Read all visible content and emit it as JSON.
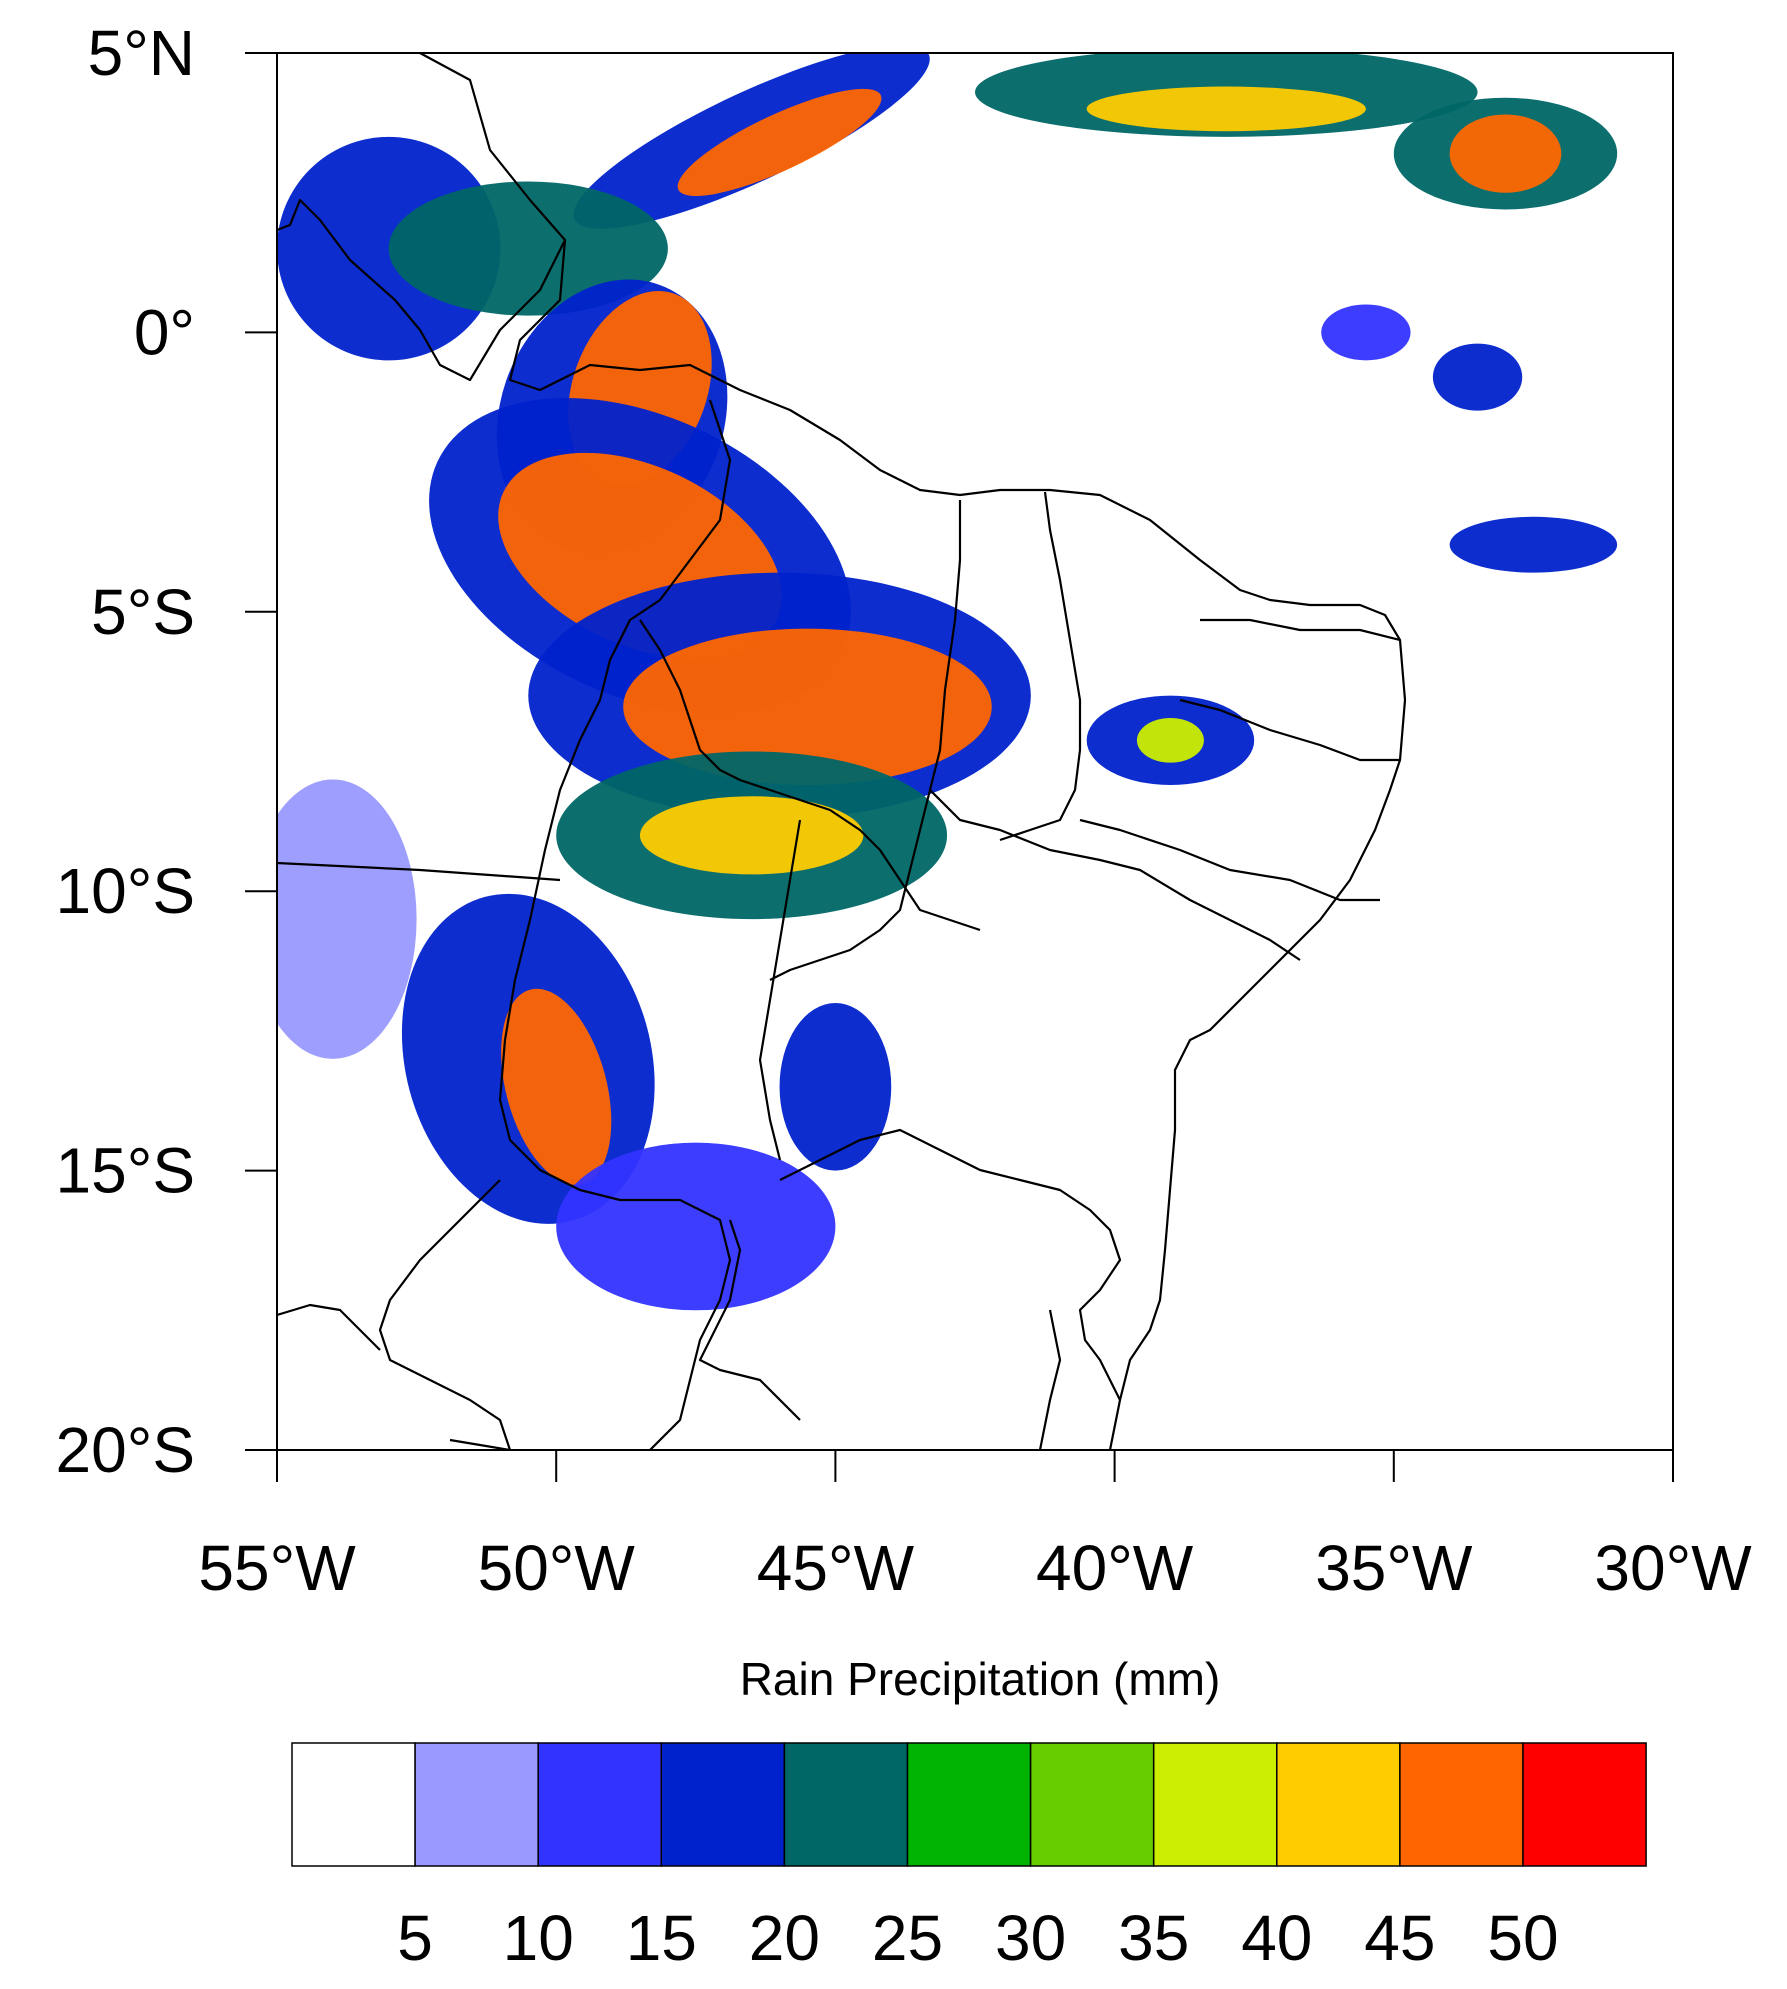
{
  "map": {
    "lon_range": [
      -55,
      -30
    ],
    "lat_range": [
      -20,
      5
    ],
    "lat_ticks": [
      {
        "value": 5,
        "label": "5°N"
      },
      {
        "value": 0,
        "label": "0°"
      },
      {
        "value": -5,
        "label": "5°S"
      },
      {
        "value": -10,
        "label": "10°S"
      },
      {
        "value": -15,
        "label": "15°S"
      },
      {
        "value": -20,
        "label": "20°S"
      }
    ],
    "lon_ticks": [
      {
        "value": -55,
        "label": "55°W"
      },
      {
        "value": -50,
        "label": "50°W"
      },
      {
        "value": -45,
        "label": "45°W"
      },
      {
        "value": -40,
        "label": "40°W"
      },
      {
        "value": -35,
        "label": "35°W"
      },
      {
        "value": -30,
        "label": "30°W"
      }
    ],
    "frame_color": "#000000",
    "coast_color": "#000000"
  },
  "precip_areas": [
    {
      "lon": -46.5,
      "lat": 3.5,
      "rx": 3.5,
      "ry": 0.8,
      "level": 3,
      "rot": -25
    },
    {
      "lon": -46.0,
      "lat": 3.4,
      "rx": 2.0,
      "ry": 0.5,
      "level": 9,
      "rot": -25
    },
    {
      "lon": -38.0,
      "lat": 4.3,
      "rx": 4.5,
      "ry": 0.8,
      "level": 4
    },
    {
      "lon": -38.0,
      "lat": 4.0,
      "rx": 2.5,
      "ry": 0.4,
      "level": 8
    },
    {
      "lon": -33.0,
      "lat": 3.2,
      "rx": 2.0,
      "ry": 1.0,
      "level": 4
    },
    {
      "lon": -33.0,
      "lat": 3.2,
      "rx": 1.0,
      "ry": 0.7,
      "level": 9
    },
    {
      "lon": -53.0,
      "lat": 1.5,
      "rx": 2.0,
      "ry": 2.0,
      "level": 3
    },
    {
      "lon": -50.5,
      "lat": 1.5,
      "rx": 2.5,
      "ry": 1.2,
      "level": 4
    },
    {
      "lon": -49.0,
      "lat": -1.5,
      "rx": 2.0,
      "ry": 2.5,
      "level": 3,
      "rot": 20
    },
    {
      "lon": -48.5,
      "lat": -1.0,
      "rx": 1.2,
      "ry": 1.8,
      "level": 9,
      "rot": 20
    },
    {
      "lon": -48.5,
      "lat": -4.0,
      "rx": 4.0,
      "ry": 2.5,
      "level": 3,
      "rot": 25
    },
    {
      "lon": -48.5,
      "lat": -4.0,
      "rx": 2.7,
      "ry": 1.6,
      "level": 9,
      "rot": 25
    },
    {
      "lon": -46.0,
      "lat": -6.5,
      "rx": 4.5,
      "ry": 2.2,
      "level": 3
    },
    {
      "lon": -45.5,
      "lat": -6.7,
      "rx": 3.3,
      "ry": 1.4,
      "level": 9
    },
    {
      "lon": -46.5,
      "lat": -9.0,
      "rx": 3.5,
      "ry": 1.5,
      "level": 4
    },
    {
      "lon": -46.5,
      "lat": -9.0,
      "rx": 2.0,
      "ry": 0.7,
      "level": 8
    },
    {
      "lon": -50.5,
      "lat": -13.0,
      "rx": 2.2,
      "ry": 3.0,
      "level": 3,
      "rot": -15
    },
    {
      "lon": -50.0,
      "lat": -13.5,
      "rx": 0.9,
      "ry": 1.8,
      "level": 9,
      "rot": -15
    },
    {
      "lon": -39.0,
      "lat": -7.3,
      "rx": 1.5,
      "ry": 0.8,
      "level": 3
    },
    {
      "lon": -39.0,
      "lat": -7.3,
      "rx": 0.6,
      "ry": 0.4,
      "level": 7
    },
    {
      "lon": -35.5,
      "lat": 0.0,
      "rx": 0.8,
      "ry": 0.5,
      "level": 2
    },
    {
      "lon": -33.5,
      "lat": -0.8,
      "rx": 0.8,
      "ry": 0.6,
      "level": 3
    },
    {
      "lon": -32.5,
      "lat": -3.8,
      "rx": 1.5,
      "ry": 0.5,
      "level": 3
    },
    {
      "lon": -47.5,
      "lat": -16.0,
      "rx": 2.5,
      "ry": 1.5,
      "level": 2
    },
    {
      "lon": -45.0,
      "lat": -13.5,
      "rx": 1.0,
      "ry": 1.5,
      "level": 3
    },
    {
      "lon": -54.0,
      "lat": -10.5,
      "rx": 1.5,
      "ry": 2.5,
      "level": 1
    }
  ],
  "colorbar": {
    "title": "Rain Precipitation (mm)",
    "colors": [
      "#ffffff",
      "#9999ff",
      "#3333ff",
      "#0022cc",
      "#006666",
      "#00b300",
      "#66cc00",
      "#ccee00",
      "#ffcc00",
      "#ff6600",
      "#ff0000"
    ],
    "labels": [
      "5",
      "10",
      "15",
      "20",
      "25",
      "30",
      "35",
      "40",
      "45",
      "50"
    ]
  }
}
